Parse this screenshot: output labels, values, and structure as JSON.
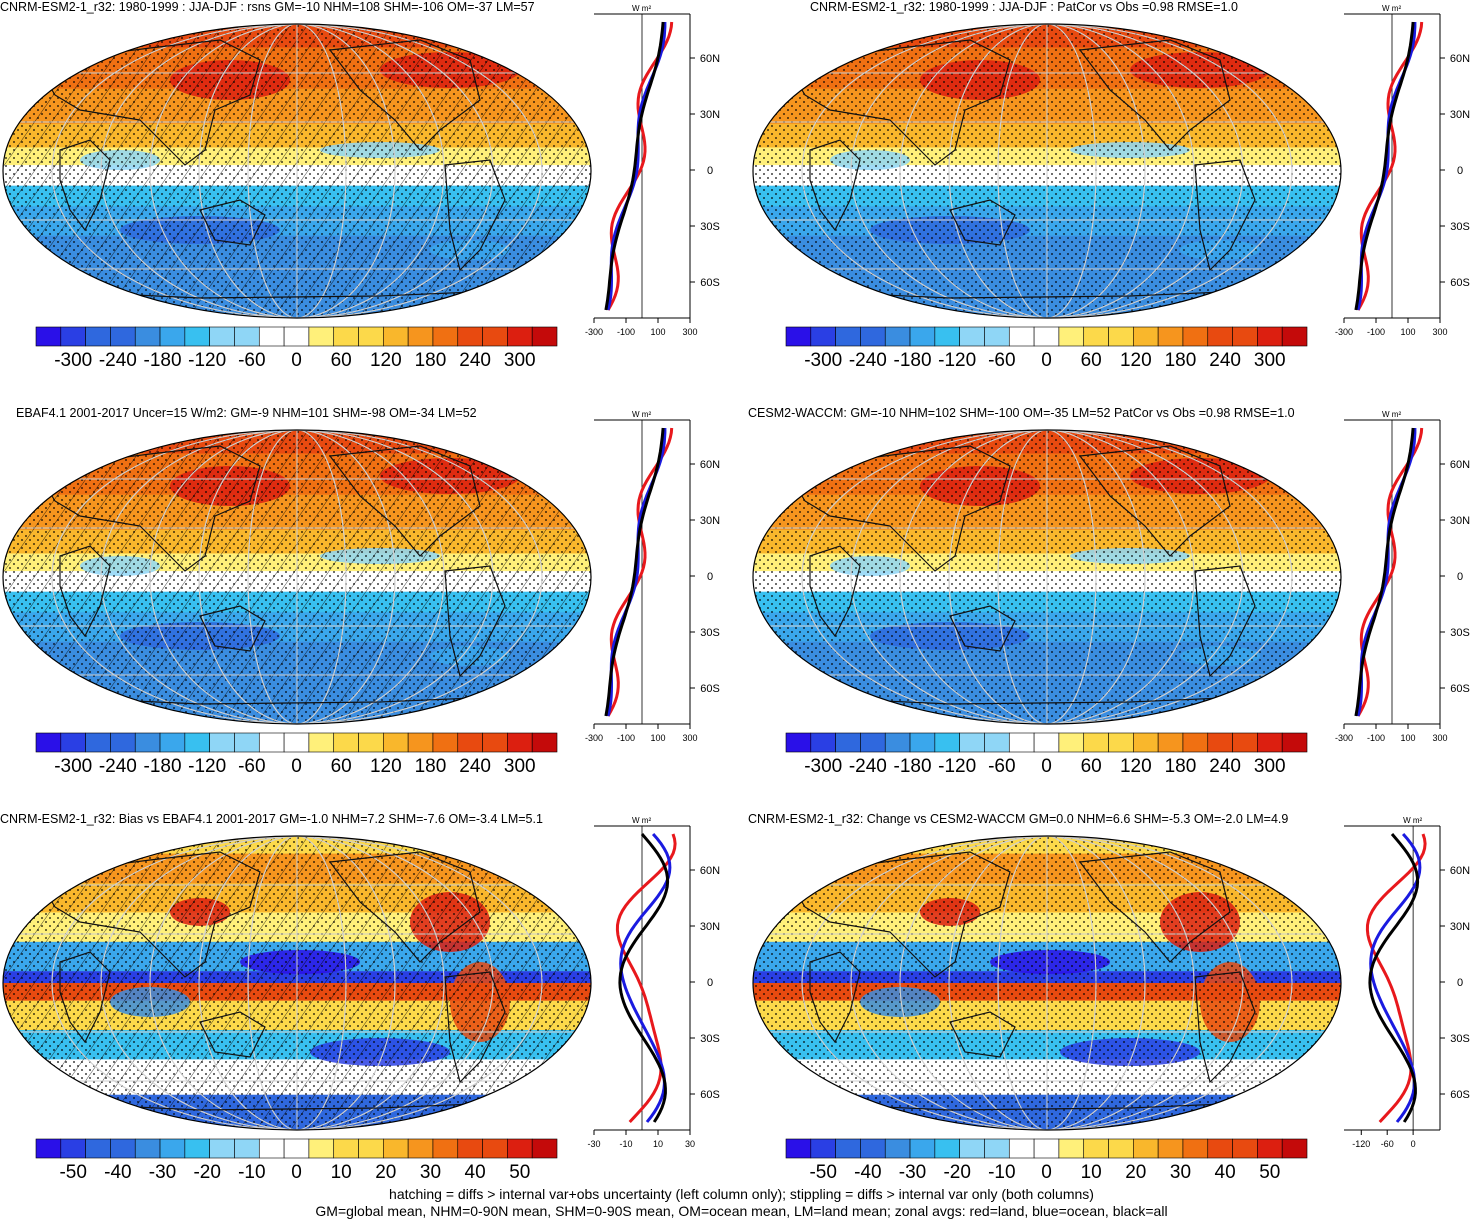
{
  "zonal_unit": "W m²",
  "lat_labels": [
    "60N",
    "30N",
    "0",
    "30S",
    "60S"
  ],
  "colors": {
    "land_zonal": "#e8181c",
    "ocean_zonal": "#1a1ae0",
    "all_zonal": "#000000",
    "ramp": [
      "#2a10e8",
      "#2a3fe4",
      "#2f68de",
      "#3a8de0",
      "#3aa7ec",
      "#38c0f0",
      "#8fd6f6",
      "#ffffff",
      "#ffffff",
      "#fff07a",
      "#fcd94a",
      "#f9b72c",
      "#f6951e",
      "#f07012",
      "#e84a10",
      "#dc1f10",
      "#c40a0a"
    ]
  },
  "panels": [
    {
      "title": "CNRM-ESM2-1_r32: 1980-1999 : JJA-DJF : rsns GM=-10 NHM=108 SHM=-106 OM=-37 LM=57",
      "cb_labels": [
        "-300",
        "-240",
        "-180",
        "-120",
        "-60",
        "0",
        "60",
        "120",
        "180",
        "240",
        "300"
      ],
      "zonal_ticks": [
        "-300",
        "-100",
        "100",
        "300"
      ],
      "kind": "clim",
      "hatch": true
    },
    {
      "title": "CNRM-ESM2-1_r32: 1980-1999 : JJA-DJF : PatCor vs Obs =0.98 RMSE=1.0",
      "cb_labels": [
        "-300",
        "-240",
        "-180",
        "-120",
        "-60",
        "0",
        "60",
        "120",
        "180",
        "240",
        "300"
      ],
      "zonal_ticks": [
        "-300",
        "-100",
        "100",
        "300"
      ],
      "kind": "clim",
      "hatch": false
    },
    {
      "title": "EBAF4.1 2001-2017 Uncer=15 W/m2: GM=-9 NHM=101 SHM=-98 OM=-34 LM=52",
      "cb_labels": [
        "-300",
        "-240",
        "-180",
        "-120",
        "-60",
        "0",
        "60",
        "120",
        "180",
        "240",
        "300"
      ],
      "zonal_ticks": [
        "-300",
        "-100",
        "100",
        "300"
      ],
      "kind": "clim",
      "hatch": true
    },
    {
      "title": "CESM2-WACCM: GM=-10 NHM=102 SHM=-100 OM=-35 LM=52 PatCor vs Obs =0.98 RMSE=1.0",
      "cb_labels": [
        "-300",
        "-240",
        "-180",
        "-120",
        "-60",
        "0",
        "60",
        "120",
        "180",
        "240",
        "300"
      ],
      "zonal_ticks": [
        "-300",
        "-100",
        "100",
        "300"
      ],
      "kind": "clim",
      "hatch": false
    },
    {
      "title": "CNRM-ESM2-1_r32: Bias vs EBAF4.1 2001-2017 GM=-1.0 NHM=7.2 SHM=-7.6 OM=-3.4 LM=5.1",
      "cb_labels": [
        "-50",
        "-40",
        "-30",
        "-20",
        "-10",
        "0",
        "10",
        "20",
        "30",
        "40",
        "50"
      ],
      "zonal_ticks": [
        "-30",
        "-10",
        "10",
        "30"
      ],
      "kind": "diff",
      "hatch": true
    },
    {
      "title": "CNRM-ESM2-1_r32: Change vs CESM2-WACCM GM=0.0 NHM=6.6 SHM=-5.3 OM=-2.0 LM=4.9",
      "cb_labels": [
        "-50",
        "-40",
        "-30",
        "-20",
        "-10",
        "0",
        "10",
        "20",
        "30",
        "40",
        "50"
      ],
      "zonal_ticks": [
        "-120",
        "-60",
        "0"
      ],
      "kind": "diff",
      "hatch": false
    }
  ],
  "footer": {
    "line1": "hatching = diffs > internal var+obs uncertainty (left column only); stippling = diffs > internal var only (both columns)",
    "line2": "GM=global mean, NHM=0-90N mean, SHM=0-90S mean, OM=ocean mean, LM=land mean; zonal avgs: red=land, blue=ocean, black=all"
  }
}
